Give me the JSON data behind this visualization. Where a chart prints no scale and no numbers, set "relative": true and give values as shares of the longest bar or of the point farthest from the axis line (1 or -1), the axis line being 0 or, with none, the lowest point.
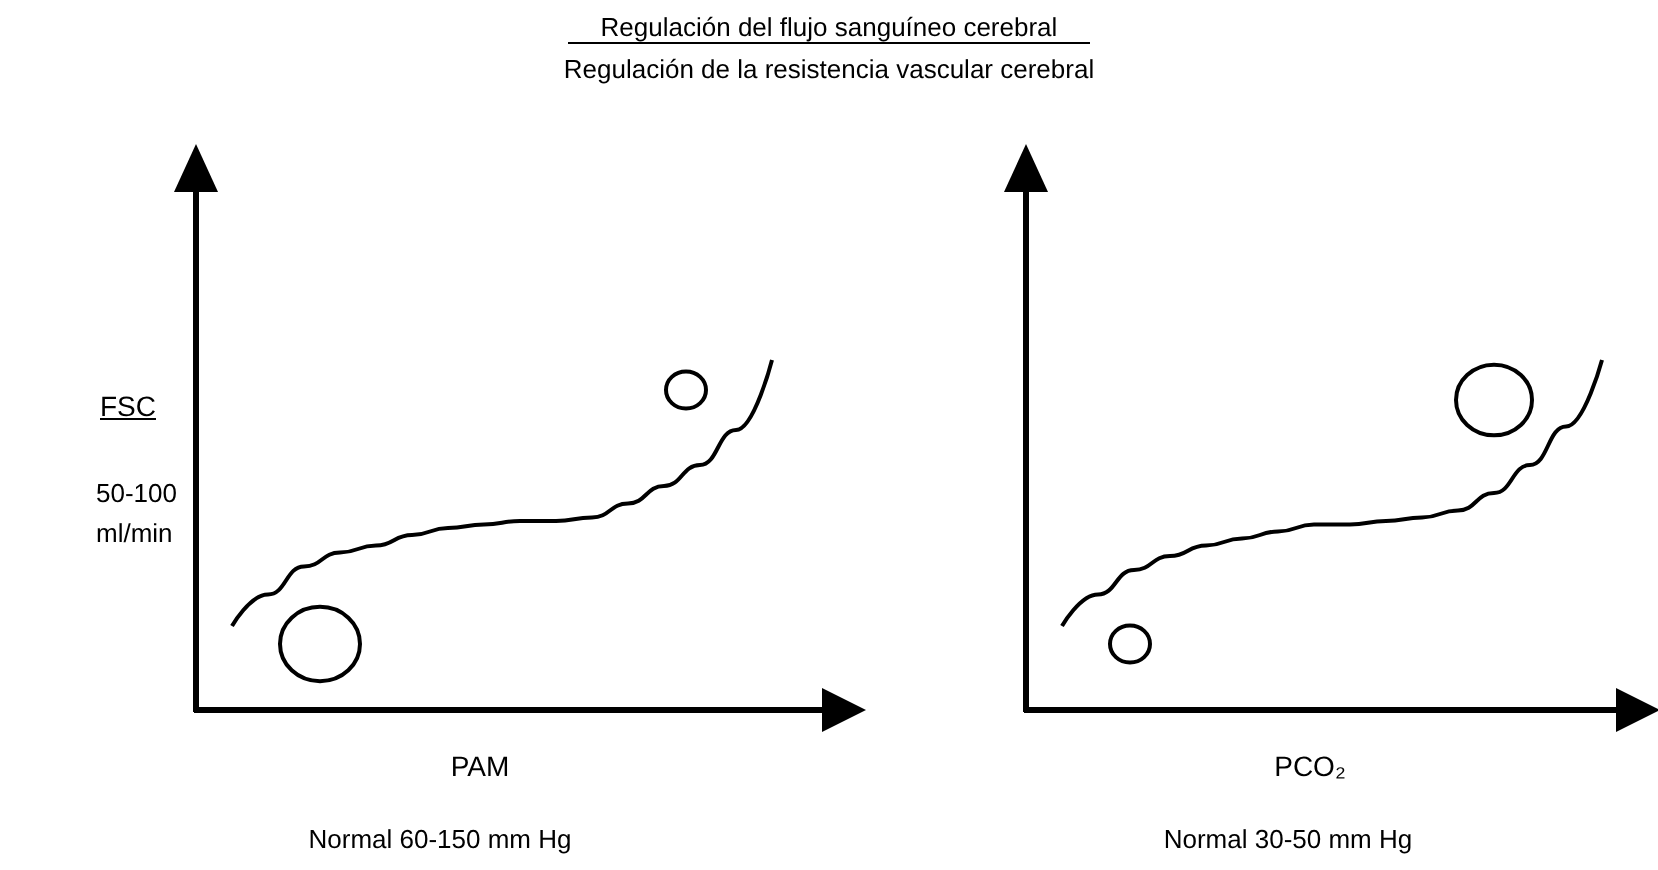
{
  "chart_data": [
    {
      "type": "line",
      "title": "Regulación del flujo sanguíneo cerebral",
      "subtitle": "Regulación de la resistencia vascular cerebral",
      "ylabel": "FSC",
      "xlabel": "PAM",
      "annotations": [
        "50-100 ml/min",
        "Normal 60-150 mm Hg"
      ],
      "relative": true,
      "marker": "none",
      "color": "#000000",
      "categories": [
        null,
        null,
        null,
        null,
        null,
        null,
        null,
        null,
        null,
        null,
        null,
        null,
        null,
        null,
        null,
        null,
        null,
        null,
        null
      ],
      "values": [
        null,
        0.24,
        0.33,
        0.41,
        0.45,
        0.47,
        0.5,
        0.52,
        0.53,
        0.54,
        0.54,
        0.55,
        0.59,
        0.64,
        0.7,
        0.8,
        1,
        null,
        null
      ]
    },
    {
      "type": "line",
      "xlabel": "PCO₂",
      "annotations": [
        "Normal 30-50 mm Hg"
      ],
      "relative": true,
      "marker": "none",
      "color": "#000000",
      "categories": [
        null,
        null,
        null,
        null,
        null,
        null,
        null,
        null,
        null,
        null,
        null,
        null,
        null,
        null,
        null,
        null,
        null,
        null
      ],
      "values": [
        null,
        0.24,
        0.33,
        0.4,
        0.44,
        0.47,
        0.49,
        0.51,
        0.53,
        0.53,
        0.54,
        0.55,
        0.57,
        0.62,
        0.7,
        0.81,
        1,
        null
      ]
    }
  ]
}
